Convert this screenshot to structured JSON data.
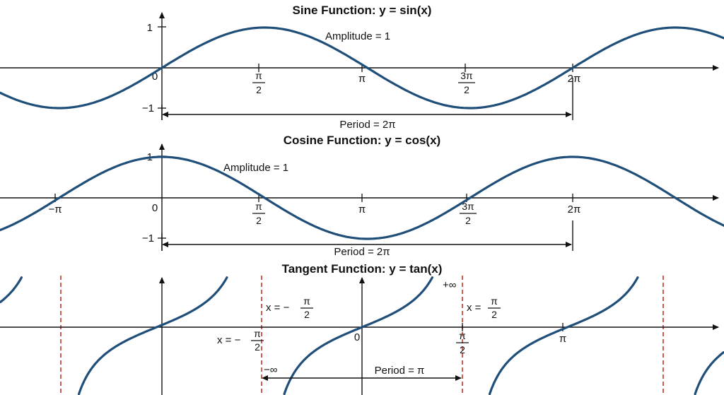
{
  "colors": {
    "curve": "#1f4e79",
    "asymptote": "#c0392b",
    "axis": "#111111"
  },
  "sine": {
    "title": "Sine Function: y = sin(x)",
    "amplitude": "Amplitude = 1",
    "period": "Period = 2π",
    "y_ticks": {
      "one": "1",
      "minus_one": "−1"
    },
    "origin": "0",
    "x_ticks": [
      {
        "num": "π",
        "den": "2"
      },
      {
        "num": "",
        "den": "",
        "text": "π"
      },
      {
        "num": "3π",
        "den": "2"
      },
      {
        "num": "",
        "den": "",
        "text": "2π"
      }
    ]
  },
  "cosine": {
    "title": "Cosine Function: y = cos(x)",
    "amplitude": "Amplitude = 1",
    "period": "Period = 2π",
    "y_ticks": {
      "one": "1",
      "minus_one": "−1"
    },
    "origin": "0",
    "x_ticks": [
      {
        "text": "−π"
      },
      {
        "num": "π",
        "den": "2"
      },
      {
        "text": "π"
      },
      {
        "num": "3π",
        "den": "2"
      },
      {
        "text": "2π"
      }
    ]
  },
  "tangent": {
    "title": "Tangent Function: y = tan(x)",
    "origin": "0",
    "asym_left_label": "x = −",
    "asym_right_label": "x =",
    "asym_frac": {
      "num": "π",
      "den": "2"
    },
    "plus_inf": "+∞",
    "minus_inf": "−∞",
    "period": "Period = π",
    "x_ticks": [
      {
        "num": "π",
        "den": "2"
      },
      {
        "text": "π"
      }
    ]
  }
}
